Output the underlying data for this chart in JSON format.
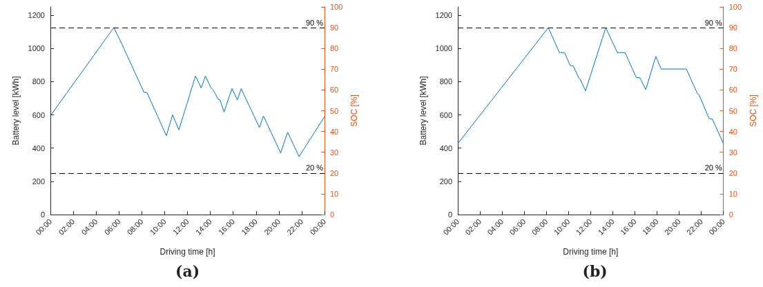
{
  "chart_data": [
    {
      "type": "line",
      "xlabel": "Driving time [h]",
      "ylabel": "Battery level [kWh]",
      "y2label": "SOC [%]",
      "annotations": [
        "(a)"
      ],
      "xlim": [
        0,
        24
      ],
      "xticks": [
        {
          "value": 0,
          "label": "00:00"
        },
        {
          "value": 2,
          "label": "02:00"
        },
        {
          "value": 4,
          "label": "04:00"
        },
        {
          "value": 6,
          "label": "06:00"
        },
        {
          "value": 8,
          "label": "08:00"
        },
        {
          "value": 10,
          "label": "10:00"
        },
        {
          "value": 12,
          "label": "12:00"
        },
        {
          "value": 14,
          "label": "14:00"
        },
        {
          "value": 16,
          "label": "16:00"
        },
        {
          "value": 18,
          "label": "18:00"
        },
        {
          "value": 20,
          "label": "20:00"
        },
        {
          "value": 22,
          "label": "22:00"
        },
        {
          "value": 24,
          "label": "00:00"
        }
      ],
      "ylim": [
        0,
        1250
      ],
      "yticks": [
        0,
        200,
        400,
        600,
        800,
        1000,
        1200
      ],
      "y2lim": [
        0,
        100
      ],
      "y2ticks": [
        0,
        10,
        20,
        30,
        40,
        50,
        60,
        70,
        80,
        90,
        100
      ],
      "series": [
        {
          "color": "#0072bd",
          "x": [
            0,
            5.55,
            6.1,
            8.2,
            8.45,
            10.15,
            10.7,
            11.25,
            12.7,
            13.2,
            13.57,
            14.07,
            14.25,
            14.7,
            14.85,
            15.2,
            15.9,
            16.37,
            16.7,
            18.3,
            18.65,
            20.16,
            20.77,
            21.77,
            24
          ],
          "values": [
            595,
            1125,
            1050,
            735,
            735,
            475,
            600,
            510,
            834,
            762,
            834,
            762,
            750,
            693,
            690,
            617,
            759,
            690,
            758,
            524,
            593,
            371,
            496,
            349,
            590
          ]
        }
      ],
      "ref_lines": [
        {
          "axis": "y2",
          "value": 90,
          "label": "90 %",
          "color": "#000000",
          "line_style": "dashed"
        },
        {
          "axis": "y2",
          "value": 20,
          "label": "20 %",
          "color": "#000000",
          "line_style": "dashed"
        }
      ]
    },
    {
      "type": "line",
      "xlabel": "Driving time [h]",
      "ylabel": "Battery level [kWh]",
      "y2label": "SOC [%]",
      "annotations": [
        "(b)"
      ],
      "xlim": [
        0,
        24
      ],
      "xticks": [
        {
          "value": 0,
          "label": "00:00"
        },
        {
          "value": 2,
          "label": "02:00"
        },
        {
          "value": 4,
          "label": "04:00"
        },
        {
          "value": 6,
          "label": "06:00"
        },
        {
          "value": 8,
          "label": "08:00"
        },
        {
          "value": 10,
          "label": "10:00"
        },
        {
          "value": 12,
          "label": "12:00"
        },
        {
          "value": 14,
          "label": "14:00"
        },
        {
          "value": 16,
          "label": "16:00"
        },
        {
          "value": 18,
          "label": "18:00"
        },
        {
          "value": 20,
          "label": "20:00"
        },
        {
          "value": 22,
          "label": "22:00"
        },
        {
          "value": 24,
          "label": "00:00"
        }
      ],
      "ylim": [
        0,
        1250
      ],
      "yticks": [
        0,
        200,
        400,
        600,
        800,
        1000,
        1200
      ],
      "y2lim": [
        0,
        100
      ],
      "y2ticks": [
        0,
        10,
        20,
        30,
        40,
        50,
        60,
        70,
        80,
        90,
        100
      ],
      "series": [
        {
          "color": "#0072bd",
          "x": [
            0,
            8.18,
            9.18,
            9.65,
            10.15,
            10.43,
            10.95,
            11.05,
            11.54,
            13.37,
            14.41,
            15.11,
            16.12,
            16.46,
            16.98,
            17.89,
            18.37,
            20.65,
            21.65,
            21.8,
            22.7,
            22.99,
            24
          ],
          "values": [
            427,
            1125,
            975,
            975,
            897,
            895,
            820,
            815,
            745,
            1125,
            975,
            975,
            825,
            823,
            752,
            952,
            876,
            876,
            728,
            720,
            578,
            575,
            427
          ]
        }
      ],
      "ref_lines": [
        {
          "axis": "y2",
          "value": 90,
          "label": "90 %",
          "color": "#000000",
          "line_style": "dashed"
        },
        {
          "axis": "y2",
          "value": 20,
          "label": "20 %",
          "color": "#000000",
          "line_style": "dashed"
        }
      ]
    }
  ]
}
